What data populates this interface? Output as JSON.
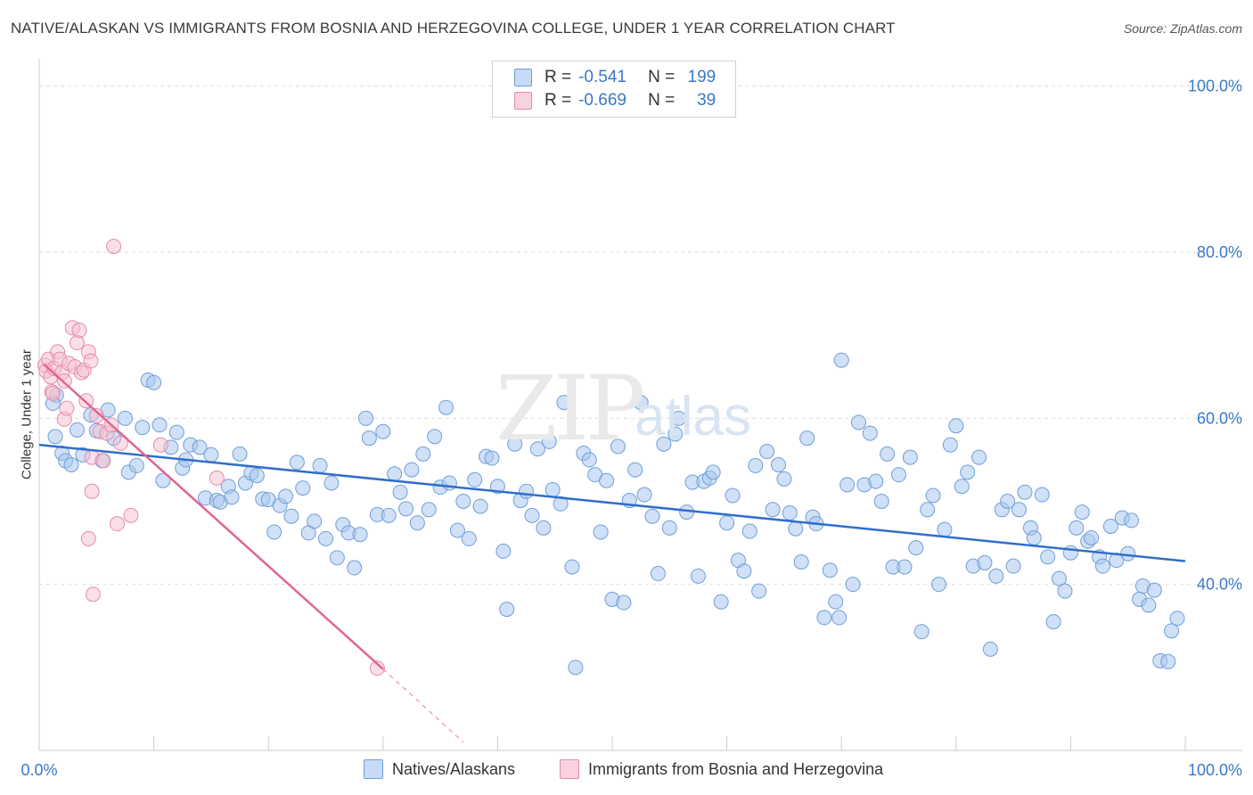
{
  "chart_data": {
    "type": "scatter",
    "title": "NATIVE/ALASKAN VS IMMIGRANTS FROM BOSNIA AND HERZEGOVINA COLLEGE, UNDER 1 YEAR CORRELATION CHART",
    "source": "Source: ZipAtlas.com",
    "xlabel": "",
    "ylabel": "College, Under 1 year",
    "xlim": [
      0,
      100
    ],
    "ylim": [
      20,
      102
    ],
    "x_tick_labels": [
      "0.0%",
      "100.0%"
    ],
    "y_tick_labels": [
      "100.0%",
      "80.0%",
      "60.0%",
      "40.0%"
    ],
    "y_ticks": [
      100,
      80,
      60,
      40
    ],
    "grid": true,
    "watermark": [
      "ZIP",
      "atlas"
    ],
    "colors": {
      "blue_fill": "#a9c7ef",
      "blue_stroke": "#6f9fd8",
      "blue_line": "#2f6fc9",
      "pink_fill": "#f4bfd0",
      "pink_stroke": "#e88aa8",
      "pink_line": "#e3648f",
      "tick_text": "#3a78c9",
      "grid": "#dddddd"
    },
    "stats": [
      {
        "label": "R =",
        "r": "-0.541",
        "n_label": "N =",
        "n": "199"
      },
      {
        "label": "R =",
        "r": "-0.669",
        "n_label": "N =",
        "n": "39"
      }
    ],
    "series": [
      {
        "name": "Natives/Alaskans",
        "trend": {
          "x": [
            0,
            100
          ],
          "y": [
            56.8,
            42.8
          ]
        },
        "points": [
          [
            1.4,
            57.8
          ],
          [
            2.0,
            55.8
          ],
          [
            2.3,
            54.9
          ],
          [
            2.8,
            54.4
          ],
          [
            1.5,
            62.8
          ],
          [
            1.2,
            61.8
          ],
          [
            3.3,
            58.6
          ],
          [
            3.8,
            55.6
          ],
          [
            4.5,
            60.4
          ],
          [
            5.0,
            58.5
          ],
          [
            5.5,
            54.9
          ],
          [
            6.0,
            61.0
          ],
          [
            6.5,
            57.6
          ],
          [
            7.5,
            60.0
          ],
          [
            7.8,
            53.5
          ],
          [
            8.5,
            54.3
          ],
          [
            9.0,
            58.9
          ],
          [
            9.5,
            64.6
          ],
          [
            10.0,
            64.3
          ],
          [
            10.5,
            59.2
          ],
          [
            10.8,
            52.5
          ],
          [
            11.5,
            56.5
          ],
          [
            12.0,
            58.3
          ],
          [
            12.5,
            54.0
          ],
          [
            12.8,
            55.0
          ],
          [
            13.2,
            56.8
          ],
          [
            14.0,
            56.5
          ],
          [
            14.5,
            50.4
          ],
          [
            15.0,
            55.6
          ],
          [
            15.5,
            50.1
          ],
          [
            15.8,
            49.9
          ],
          [
            16.5,
            51.8
          ],
          [
            16.8,
            50.5
          ],
          [
            17.5,
            55.7
          ],
          [
            18.0,
            52.2
          ],
          [
            18.5,
            53.4
          ],
          [
            19.0,
            53.1
          ],
          [
            19.5,
            50.3
          ],
          [
            20.0,
            50.2
          ],
          [
            20.5,
            46.3
          ],
          [
            21.0,
            49.5
          ],
          [
            21.5,
            50.6
          ],
          [
            22.0,
            48.2
          ],
          [
            22.5,
            54.7
          ],
          [
            23.0,
            51.6
          ],
          [
            23.5,
            46.2
          ],
          [
            24.0,
            47.6
          ],
          [
            24.5,
            54.3
          ],
          [
            25.0,
            45.5
          ],
          [
            25.5,
            52.2
          ],
          [
            26.0,
            43.2
          ],
          [
            26.5,
            47.2
          ],
          [
            27.0,
            46.2
          ],
          [
            27.5,
            42.0
          ],
          [
            28.0,
            46.0
          ],
          [
            28.5,
            60.0
          ],
          [
            28.8,
            57.6
          ],
          [
            29.5,
            48.4
          ],
          [
            30.0,
            58.4
          ],
          [
            30.5,
            48.3
          ],
          [
            31.0,
            53.3
          ],
          [
            31.5,
            51.1
          ],
          [
            32.0,
            49.1
          ],
          [
            32.5,
            53.8
          ],
          [
            33.0,
            47.4
          ],
          [
            33.5,
            55.7
          ],
          [
            34.0,
            49.0
          ],
          [
            34.5,
            57.8
          ],
          [
            35.0,
            51.7
          ],
          [
            35.5,
            61.3
          ],
          [
            35.8,
            52.2
          ],
          [
            36.5,
            46.5
          ],
          [
            37.0,
            50.0
          ],
          [
            37.5,
            45.5
          ],
          [
            38.0,
            52.6
          ],
          [
            38.5,
            49.4
          ],
          [
            39.0,
            55.4
          ],
          [
            39.5,
            55.2
          ],
          [
            40.0,
            51.8
          ],
          [
            40.5,
            44.0
          ],
          [
            40.8,
            37.0
          ],
          [
            41.5,
            56.9
          ],
          [
            42.0,
            50.1
          ],
          [
            42.5,
            51.2
          ],
          [
            43.0,
            48.3
          ],
          [
            43.5,
            56.3
          ],
          [
            44.0,
            46.8
          ],
          [
            44.5,
            57.2
          ],
          [
            44.8,
            51.4
          ],
          [
            45.5,
            49.7
          ],
          [
            45.8,
            61.9
          ],
          [
            46.5,
            42.1
          ],
          [
            46.8,
            30.0
          ],
          [
            47.5,
            55.8
          ],
          [
            48.0,
            55.0
          ],
          [
            48.5,
            53.2
          ],
          [
            49.0,
            46.3
          ],
          [
            49.5,
            52.5
          ],
          [
            50.0,
            38.2
          ],
          [
            50.5,
            56.6
          ],
          [
            51.0,
            37.8
          ],
          [
            51.5,
            50.1
          ],
          [
            52.0,
            53.8
          ],
          [
            52.5,
            61.9
          ],
          [
            52.8,
            50.8
          ],
          [
            53.5,
            48.2
          ],
          [
            54.0,
            41.3
          ],
          [
            54.5,
            56.9
          ],
          [
            55.0,
            46.8
          ],
          [
            55.5,
            58.1
          ],
          [
            55.8,
            60.0
          ],
          [
            56.5,
            48.7
          ],
          [
            57.0,
            52.3
          ],
          [
            57.5,
            41.0
          ],
          [
            58.0,
            52.4
          ],
          [
            58.5,
            52.8
          ],
          [
            58.8,
            53.5
          ],
          [
            59.5,
            37.9
          ],
          [
            60.0,
            47.4
          ],
          [
            60.5,
            50.7
          ],
          [
            61.0,
            42.9
          ],
          [
            61.5,
            41.6
          ],
          [
            62.0,
            46.4
          ],
          [
            62.5,
            54.3
          ],
          [
            62.8,
            39.2
          ],
          [
            63.5,
            56.0
          ],
          [
            64.0,
            49.0
          ],
          [
            64.5,
            54.4
          ],
          [
            65.0,
            52.7
          ],
          [
            65.5,
            48.6
          ],
          [
            66.0,
            46.7
          ],
          [
            66.5,
            42.7
          ],
          [
            67.0,
            57.6
          ],
          [
            67.5,
            48.1
          ],
          [
            67.8,
            47.3
          ],
          [
            68.5,
            36.0
          ],
          [
            69.0,
            41.7
          ],
          [
            69.5,
            37.9
          ],
          [
            69.8,
            36.0
          ],
          [
            70.5,
            52.0
          ],
          [
            71.0,
            40.0
          ],
          [
            71.5,
            59.5
          ],
          [
            72.0,
            52.0
          ],
          [
            72.5,
            58.2
          ],
          [
            73.0,
            52.4
          ],
          [
            73.5,
            50.0
          ],
          [
            74.0,
            55.7
          ],
          [
            74.5,
            42.1
          ],
          [
            75.0,
            53.2
          ],
          [
            75.5,
            42.1
          ],
          [
            76.0,
            55.3
          ],
          [
            76.5,
            44.4
          ],
          [
            77.0,
            34.3
          ],
          [
            77.5,
            49.0
          ],
          [
            78.0,
            50.7
          ],
          [
            78.5,
            40.0
          ],
          [
            79.0,
            46.6
          ],
          [
            79.5,
            56.8
          ],
          [
            80.0,
            59.1
          ],
          [
            80.5,
            51.8
          ],
          [
            81.0,
            53.5
          ],
          [
            81.5,
            42.2
          ],
          [
            82.0,
            55.3
          ],
          [
            82.5,
            42.6
          ],
          [
            83.0,
            32.2
          ],
          [
            83.5,
            41.0
          ],
          [
            84.0,
            49.0
          ],
          [
            84.5,
            50.0
          ],
          [
            85.0,
            42.2
          ],
          [
            85.5,
            49.0
          ],
          [
            86.0,
            51.1
          ],
          [
            86.5,
            46.8
          ],
          [
            86.8,
            45.6
          ],
          [
            87.5,
            50.8
          ],
          [
            88.0,
            43.3
          ],
          [
            88.5,
            35.5
          ],
          [
            89.0,
            40.7
          ],
          [
            89.5,
            39.2
          ],
          [
            90.0,
            43.8
          ],
          [
            90.5,
            46.8
          ],
          [
            91.0,
            48.7
          ],
          [
            91.5,
            45.2
          ],
          [
            91.8,
            45.6
          ],
          [
            92.5,
            43.3
          ],
          [
            92.8,
            42.2
          ],
          [
            93.5,
            47.0
          ],
          [
            94.0,
            42.9
          ],
          [
            94.5,
            48.0
          ],
          [
            95.0,
            43.7
          ],
          [
            95.3,
            47.7
          ],
          [
            96.0,
            38.2
          ],
          [
            96.3,
            39.8
          ],
          [
            96.8,
            37.5
          ],
          [
            97.3,
            39.3
          ],
          [
            97.8,
            30.8
          ],
          [
            98.5,
            30.7
          ],
          [
            98.8,
            34.4
          ],
          [
            99.3,
            35.9
          ],
          [
            70.0,
            67.0
          ]
        ]
      },
      {
        "name": "Immigrants from Bosnia and Herzegovina",
        "trend": {
          "x": [
            0.4,
            30.0
          ],
          "y": [
            66.5,
            29.8
          ]
        },
        "trend_dashed": {
          "x": [
            30.0,
            37.0
          ],
          "y": [
            29.8,
            21.0
          ]
        },
        "points": [
          [
            0.5,
            66.4
          ],
          [
            0.6,
            65.7
          ],
          [
            0.8,
            67.1
          ],
          [
            1.0,
            65.0
          ],
          [
            1.1,
            63.2
          ],
          [
            1.3,
            66.0
          ],
          [
            1.6,
            68.0
          ],
          [
            1.8,
            67.1
          ],
          [
            2.0,
            65.5
          ],
          [
            2.2,
            59.9
          ],
          [
            2.4,
            61.2
          ],
          [
            2.6,
            66.6
          ],
          [
            2.9,
            70.9
          ],
          [
            3.1,
            66.2
          ],
          [
            3.3,
            69.1
          ],
          [
            3.5,
            70.6
          ],
          [
            3.7,
            65.5
          ],
          [
            3.9,
            65.8
          ],
          [
            4.1,
            62.1
          ],
          [
            4.3,
            68.0
          ],
          [
            4.5,
            66.9
          ],
          [
            4.3,
            45.5
          ],
          [
            4.6,
            55.3
          ],
          [
            4.6,
            51.2
          ],
          [
            4.7,
            38.8
          ],
          [
            5.0,
            60.3
          ],
          [
            5.3,
            58.4
          ],
          [
            5.6,
            54.9
          ],
          [
            5.9,
            58.2
          ],
          [
            6.3,
            59.2
          ],
          [
            6.5,
            80.7
          ],
          [
            6.8,
            47.3
          ],
          [
            7.1,
            57.0
          ],
          [
            8.0,
            48.3
          ],
          [
            10.6,
            56.8
          ],
          [
            15.5,
            52.8
          ],
          [
            29.5,
            29.9
          ],
          [
            1.2,
            63.0
          ],
          [
            2.2,
            64.5
          ]
        ]
      }
    ]
  },
  "legend": [
    {
      "label": "Natives/Alaskans"
    },
    {
      "label": "Immigrants from Bosnia and Herzegovina"
    }
  ]
}
